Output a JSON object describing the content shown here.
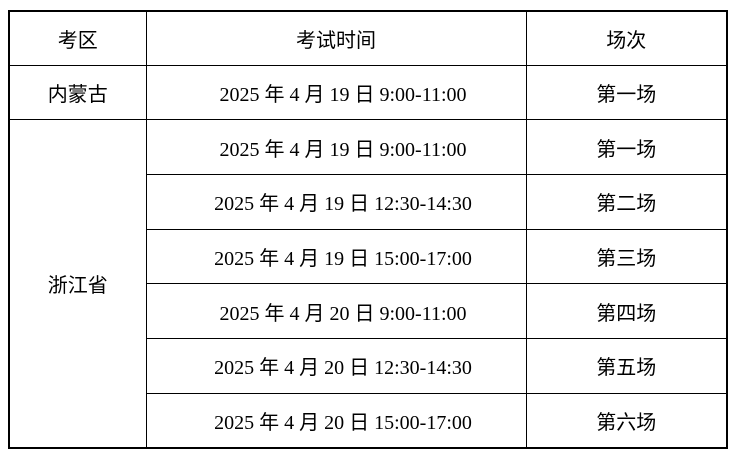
{
  "table": {
    "headers": [
      "考区",
      "考试时间",
      "场次"
    ],
    "groups": [
      {
        "region": "内蒙古",
        "rows": [
          {
            "time": "2025 年 4 月 19 日 9:00-11:00",
            "session": "第一场"
          }
        ]
      },
      {
        "region": "浙江省",
        "rows": [
          {
            "time": "2025 年 4 月 19 日 9:00-11:00",
            "session": "第一场"
          },
          {
            "time": "2025 年 4 月 19 日 12:30-14:30",
            "session": "第二场"
          },
          {
            "time": "2025 年 4 月 19 日 15:00-17:00",
            "session": "第三场"
          },
          {
            "time": "2025 年 4 月 20 日 9:00-11:00",
            "session": "第四场"
          },
          {
            "time": "2025 年 4 月 20 日 12:30-14:30",
            "session": "第五场"
          },
          {
            "time": "2025 年 4 月 20 日 15:00-17:00",
            "session": "第六场"
          }
        ]
      }
    ]
  }
}
